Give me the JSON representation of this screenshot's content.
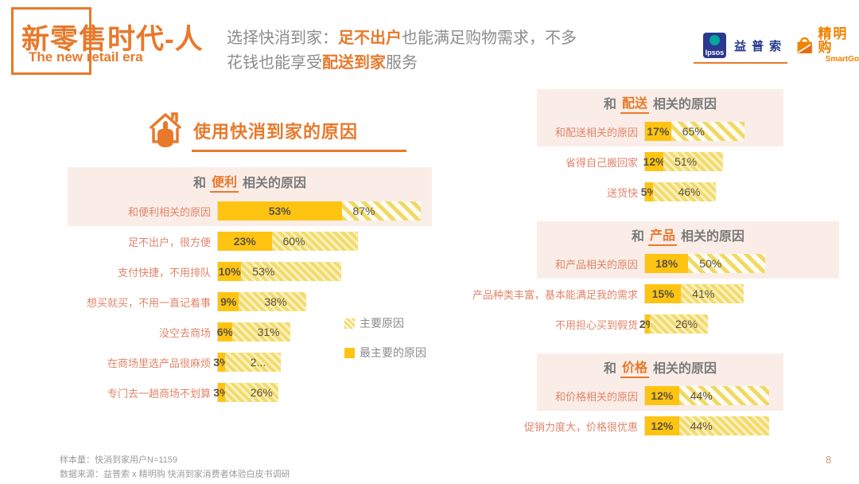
{
  "header": {
    "title_cn": "新零售时代-人",
    "title_en": "The new retail era",
    "tagline": {
      "line1_prefix": "选择快消到家：",
      "line1_bold": "足不出户",
      "line1_rest": "也能满足购物需求，不多",
      "line2_prefix": "花钱也能享受",
      "line2_bold": "配送到家",
      "line2_suffix": "服务"
    },
    "logos": {
      "ipsos_text": "Ipsos",
      "ipsos_cn": "益普索",
      "smartgo_cn": "精明购",
      "smartgo_en": "SmartGo"
    }
  },
  "section_title": "使用快消到家的原因",
  "legend": {
    "main_label": "主要原因",
    "top_label": "最主要的原因"
  },
  "footer": {
    "line1": "样本量：快消到家用户N=1159",
    "line2": "数据来源：益普索 x 精明购 快消到家消费者体验白皮书调研",
    "page": "8"
  },
  "colors": {
    "accent_orange": "#E8792B",
    "panel_pink": "#FAEDE7",
    "bar_solid_yellow": "#FFC412",
    "bar_hatch_yellow": "#F2DB6C",
    "label_salmon": "#E1846A",
    "title_gray": "#7A7A7A",
    "ipsos_blue": "#24388E",
    "smartgo_orange": "#F08300"
  },
  "chart_data": [
    {
      "type": "bar",
      "title_prefix": "和",
      "keyword": "便利",
      "title_suffix": "相关的原因",
      "series": [
        {
          "name": "最主要的原因",
          "key": "solid"
        },
        {
          "name": "主要原因",
          "key": "total"
        }
      ],
      "xmax": 92,
      "rows": [
        {
          "label": "和便利相关的原因",
          "solid": 53,
          "total": 87,
          "solid_label": "53%",
          "total_label": "87%",
          "highlight": true
        },
        {
          "label": "足不出户，很方便",
          "solid": 23,
          "total": 60,
          "solid_label": "23%",
          "total_label": "60%"
        },
        {
          "label": "支付快捷，不用排队",
          "solid": 10,
          "total": 53,
          "solid_label": "10%",
          "total_label": "53%"
        },
        {
          "label": "想买就买，不用一直记着事",
          "solid": 9,
          "total": 38,
          "solid_label": "9%",
          "total_label": "38%"
        },
        {
          "label": "没空去商场",
          "solid": 6,
          "total": 31,
          "solid_label": "6%",
          "total_label": "31%"
        },
        {
          "label": "在商场里选产品很麻烦",
          "solid": 3,
          "total": 27,
          "solid_label": "3%",
          "total_label": "2..."
        },
        {
          "label": "专门去一趟商场不划算",
          "solid": 3,
          "total": 26,
          "solid_label": "3%",
          "total_label": "26%"
        }
      ]
    },
    {
      "type": "bar",
      "title_prefix": "和",
      "keyword": "配送",
      "title_suffix": "相关的原因",
      "series": [
        {
          "name": "最主要的原因",
          "key": "solid"
        },
        {
          "name": "主要原因",
          "key": "total"
        }
      ],
      "xmax": 70,
      "rows": [
        {
          "label": "和配送相关的原因",
          "solid": 17,
          "total": 65,
          "solid_label": "17%",
          "total_label": "65%",
          "highlight": true
        },
        {
          "label": "省得自己搬回家",
          "solid": 12,
          "total": 51,
          "solid_label": "12%",
          "total_label": "51%"
        },
        {
          "label": "送货快",
          "solid": 5,
          "total": 46,
          "solid_label": "5%",
          "total_label": "46%"
        }
      ]
    },
    {
      "type": "bar",
      "title_prefix": "和",
      "keyword": "产品",
      "title_suffix": "相关的原因",
      "series": [
        {
          "name": "最主要的原因",
          "key": "solid"
        },
        {
          "name": "主要原因",
          "key": "total"
        }
      ],
      "xmax": 53,
      "rows": [
        {
          "label": "和产品相关的原因",
          "solid": 18,
          "total": 50,
          "solid_label": "18%",
          "total_label": "50%",
          "highlight": true
        },
        {
          "label": "产品种类丰富，基本能满足我的需求",
          "solid": 15,
          "total": 41,
          "solid_label": "15%",
          "total_label": "41%"
        },
        {
          "label": "不用担心买到假货",
          "solid": 2,
          "total": 26,
          "solid_label": "2%",
          "total_label": "26%"
        }
      ]
    },
    {
      "type": "bar",
      "title_prefix": "和",
      "keyword": "价格",
      "title_suffix": "相关的原因",
      "series": [
        {
          "name": "最主要的原因",
          "key": "solid"
        },
        {
          "name": "主要原因",
          "key": "total"
        }
      ],
      "xmax": 45,
      "rows": [
        {
          "label": "和价格相关的原因",
          "solid": 12,
          "total": 44,
          "solid_label": "12%",
          "total_label": "44%",
          "highlight": true
        },
        {
          "label": "促销力度大，价格很优惠",
          "solid": 12,
          "total": 44,
          "solid_label": "12%",
          "total_label": "44%"
        }
      ]
    }
  ]
}
